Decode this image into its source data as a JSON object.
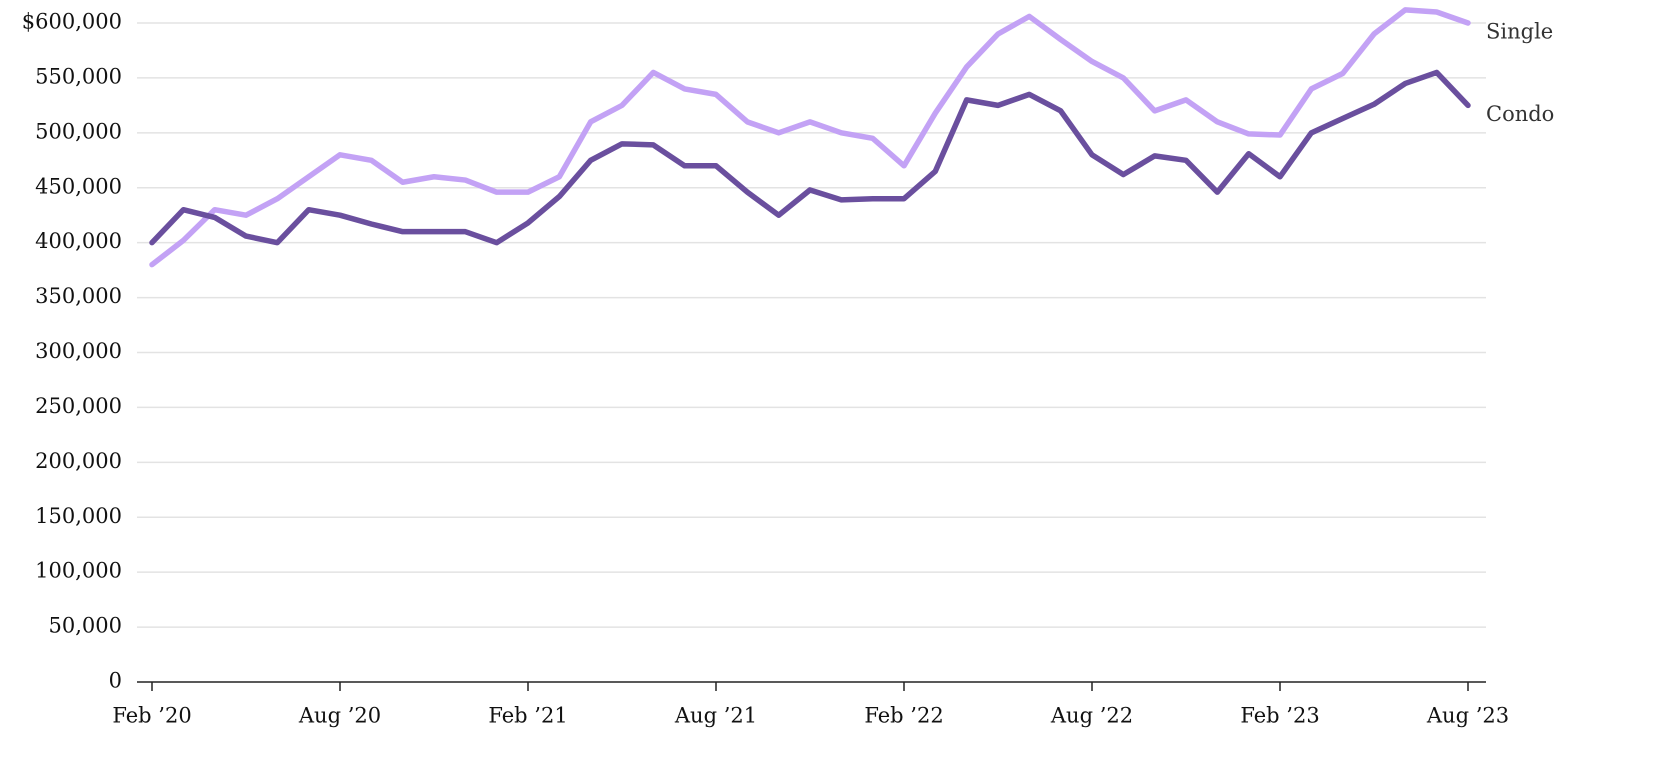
{
  "chart_data": {
    "type": "line",
    "categories": [
      "Feb ’20",
      null,
      null,
      null,
      null,
      null,
      "Aug ’20",
      null,
      null,
      null,
      null,
      null,
      "Feb ’21",
      null,
      null,
      null,
      null,
      null,
      "Aug ’21",
      null,
      null,
      null,
      null,
      null,
      "Feb ’22",
      null,
      null,
      null,
      null,
      null,
      "Aug ’22",
      null,
      null,
      null,
      null,
      null,
      "Feb ’23",
      null,
      null,
      null,
      null,
      null,
      "Aug ’23"
    ],
    "series": [
      {
        "name": "Single",
        "color": "#c3a2f5",
        "values": [
          380000,
          402000,
          430000,
          425000,
          440000,
          460000,
          480000,
          475000,
          455000,
          460000,
          457000,
          446000,
          446000,
          460000,
          510000,
          525000,
          555000,
          540000,
          535000,
          510000,
          500000,
          510000,
          500000,
          495000,
          470000,
          518000,
          560000,
          590000,
          606000,
          585000,
          565000,
          550000,
          520000,
          530000,
          510000,
          499000,
          498000,
          540000,
          554000,
          590000,
          612000,
          610000,
          600000
        ]
      },
      {
        "name": "Condo",
        "color": "#6a4f9e",
        "values": [
          400000,
          430000,
          423000,
          406000,
          400000,
          430000,
          425000,
          417000,
          410000,
          410000,
          410000,
          400000,
          418000,
          442000,
          475000,
          490000,
          489000,
          470000,
          470000,
          446000,
          425000,
          448000,
          439000,
          440000,
          440000,
          465000,
          530000,
          525000,
          535000,
          520000,
          480000,
          462000,
          479000,
          475000,
          446000,
          481000,
          460000,
          500000,
          513000,
          526000,
          545000,
          555000,
          525000
        ]
      }
    ],
    "ylim": [
      0,
      600000
    ],
    "yticks": [
      0,
      {
        "value": 50000,
        "label": "50,000"
      },
      {
        "value": 100000,
        "label": "100,000"
      },
      {
        "value": 150000,
        "label": "150,000"
      },
      {
        "value": 200000,
        "label": "200,000"
      },
      {
        "value": 250000,
        "label": "250,000"
      },
      {
        "value": 300000,
        "label": "300,000"
      },
      {
        "value": 350000,
        "label": "350,000"
      },
      {
        "value": 400000,
        "label": "400,000"
      },
      {
        "value": 450000,
        "label": "450,000"
      },
      {
        "value": 500000,
        "label": "500,000"
      },
      {
        "value": 550000,
        "label": "550,000"
      },
      {
        "value": 600000,
        "label": "$600,000"
      }
    ],
    "grid": true
  }
}
